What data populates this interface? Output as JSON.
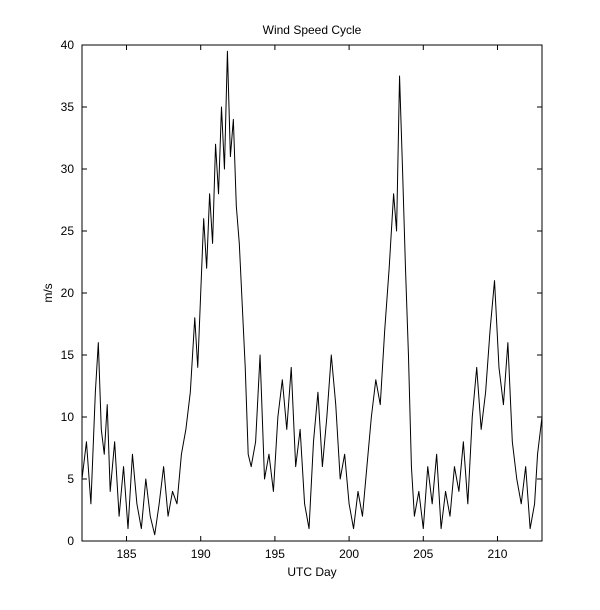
{
  "chart_data": {
    "type": "line",
    "title": "Wind Speed Cycle",
    "xlabel": "UTC Day",
    "ylabel": "m/s",
    "xlim": [
      182,
      213
    ],
    "ylim": [
      0,
      40
    ],
    "xticks": [
      185,
      190,
      195,
      200,
      205,
      210
    ],
    "yticks": [
      0,
      5,
      10,
      15,
      20,
      25,
      30,
      35,
      40
    ],
    "grid": false,
    "line_color": "#000000",
    "series": [
      {
        "values": [
          [
            182.0,
            5.0
          ],
          [
            182.3,
            8.0
          ],
          [
            182.6,
            3.0
          ],
          [
            182.9,
            12.0
          ],
          [
            183.1,
            16.0
          ],
          [
            183.3,
            9.0
          ],
          [
            183.5,
            7.0
          ],
          [
            183.7,
            11.0
          ],
          [
            183.9,
            4.0
          ],
          [
            184.2,
            8.0
          ],
          [
            184.5,
            2.0
          ],
          [
            184.8,
            6.0
          ],
          [
            185.1,
            1.0
          ],
          [
            185.4,
            7.0
          ],
          [
            185.7,
            3.0
          ],
          [
            186.0,
            1.0
          ],
          [
            186.3,
            5.0
          ],
          [
            186.6,
            2.0
          ],
          [
            186.9,
            0.5
          ],
          [
            187.2,
            3.0
          ],
          [
            187.5,
            6.0
          ],
          [
            187.8,
            2.0
          ],
          [
            188.1,
            4.0
          ],
          [
            188.4,
            3.0
          ],
          [
            188.7,
            7.0
          ],
          [
            189.0,
            9.0
          ],
          [
            189.3,
            12.0
          ],
          [
            189.6,
            18.0
          ],
          [
            189.8,
            14.0
          ],
          [
            190.0,
            20.0
          ],
          [
            190.2,
            26.0
          ],
          [
            190.4,
            22.0
          ],
          [
            190.6,
            28.0
          ],
          [
            190.8,
            24.0
          ],
          [
            191.0,
            32.0
          ],
          [
            191.2,
            28.0
          ],
          [
            191.4,
            35.0
          ],
          [
            191.6,
            30.0
          ],
          [
            191.8,
            39.5
          ],
          [
            192.0,
            31.0
          ],
          [
            192.2,
            34.0
          ],
          [
            192.4,
            27.0
          ],
          [
            192.6,
            24.0
          ],
          [
            192.8,
            19.0
          ],
          [
            193.0,
            14.0
          ],
          [
            193.2,
            7.0
          ],
          [
            193.4,
            6.0
          ],
          [
            193.7,
            8.0
          ],
          [
            194.0,
            15.0
          ],
          [
            194.3,
            5.0
          ],
          [
            194.6,
            7.0
          ],
          [
            194.9,
            4.0
          ],
          [
            195.2,
            10.0
          ],
          [
            195.5,
            13.0
          ],
          [
            195.8,
            9.0
          ],
          [
            196.1,
            14.0
          ],
          [
            196.4,
            6.0
          ],
          [
            196.7,
            9.0
          ],
          [
            197.0,
            3.0
          ],
          [
            197.3,
            1.0
          ],
          [
            197.6,
            8.0
          ],
          [
            197.9,
            12.0
          ],
          [
            198.2,
            6.0
          ],
          [
            198.5,
            10.0
          ],
          [
            198.8,
            15.0
          ],
          [
            199.1,
            11.0
          ],
          [
            199.4,
            5.0
          ],
          [
            199.7,
            7.0
          ],
          [
            200.0,
            3.0
          ],
          [
            200.3,
            1.0
          ],
          [
            200.6,
            4.0
          ],
          [
            200.9,
            2.0
          ],
          [
            201.2,
            6.0
          ],
          [
            201.5,
            10.0
          ],
          [
            201.8,
            13.0
          ],
          [
            202.1,
            11.0
          ],
          [
            202.4,
            17.0
          ],
          [
            202.7,
            22.0
          ],
          [
            203.0,
            28.0
          ],
          [
            203.2,
            25.0
          ],
          [
            203.4,
            37.5
          ],
          [
            203.6,
            30.0
          ],
          [
            203.8,
            22.0
          ],
          [
            204.0,
            15.0
          ],
          [
            204.2,
            6.0
          ],
          [
            204.4,
            2.0
          ],
          [
            204.7,
            4.0
          ],
          [
            205.0,
            1.0
          ],
          [
            205.3,
            6.0
          ],
          [
            205.6,
            3.0
          ],
          [
            205.9,
            7.0
          ],
          [
            206.2,
            1.0
          ],
          [
            206.5,
            4.0
          ],
          [
            206.8,
            2.0
          ],
          [
            207.1,
            6.0
          ],
          [
            207.4,
            4.0
          ],
          [
            207.7,
            8.0
          ],
          [
            208.0,
            3.0
          ],
          [
            208.3,
            10.0
          ],
          [
            208.6,
            14.0
          ],
          [
            208.9,
            9.0
          ],
          [
            209.2,
            12.0
          ],
          [
            209.5,
            17.0
          ],
          [
            209.8,
            21.0
          ],
          [
            210.1,
            14.0
          ],
          [
            210.4,
            11.0
          ],
          [
            210.7,
            16.0
          ],
          [
            211.0,
            8.0
          ],
          [
            211.3,
            5.0
          ],
          [
            211.6,
            3.0
          ],
          [
            211.9,
            6.0
          ],
          [
            212.2,
            1.0
          ],
          [
            212.5,
            3.0
          ],
          [
            212.7,
            7.0
          ],
          [
            213.0,
            10.0
          ]
        ]
      }
    ]
  }
}
